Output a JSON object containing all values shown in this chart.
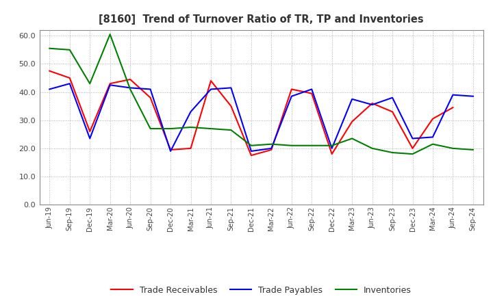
{
  "title": "[8160]  Trend of Turnover Ratio of TR, TP and Inventories",
  "xlabels": [
    "Jun-19",
    "Sep-19",
    "Dec-19",
    "Mar-20",
    "Jun-20",
    "Sep-20",
    "Dec-20",
    "Mar-21",
    "Jun-21",
    "Sep-21",
    "Dec-21",
    "Mar-22",
    "Jun-22",
    "Sep-22",
    "Dec-22",
    "Mar-23",
    "Jun-23",
    "Sep-23",
    "Dec-23",
    "Mar-24",
    "Jun-24",
    "Sep-24"
  ],
  "trade_receivables": [
    47.5,
    45.0,
    26.0,
    43.0,
    44.5,
    38.0,
    19.5,
    20.0,
    44.0,
    35.0,
    17.5,
    19.5,
    41.0,
    39.5,
    18.0,
    29.5,
    36.0,
    33.0,
    20.0,
    30.5,
    34.5,
    null
  ],
  "trade_payables": [
    41.0,
    43.0,
    23.5,
    42.5,
    41.5,
    41.0,
    19.0,
    33.0,
    41.0,
    41.5,
    19.0,
    20.0,
    38.5,
    41.0,
    20.0,
    37.5,
    35.5,
    38.0,
    23.5,
    24.0,
    39.0,
    38.5
  ],
  "inventories": [
    55.5,
    55.0,
    43.0,
    60.5,
    41.0,
    27.0,
    27.0,
    27.5,
    27.0,
    26.5,
    21.0,
    21.5,
    21.0,
    21.0,
    21.0,
    23.5,
    20.0,
    18.5,
    18.0,
    21.5,
    20.0,
    19.5
  ],
  "ylim": [
    0,
    62
  ],
  "yticks": [
    0.0,
    10.0,
    20.0,
    30.0,
    40.0,
    50.0,
    60.0
  ],
  "tr_color": "#ff0000",
  "tp_color": "#0000ff",
  "inv_color": "#008000",
  "legend_labels": [
    "Trade Receivables",
    "Trade Payables",
    "Inventories"
  ],
  "background_color": "#ffffff",
  "grid_color": "#b0b0b0"
}
